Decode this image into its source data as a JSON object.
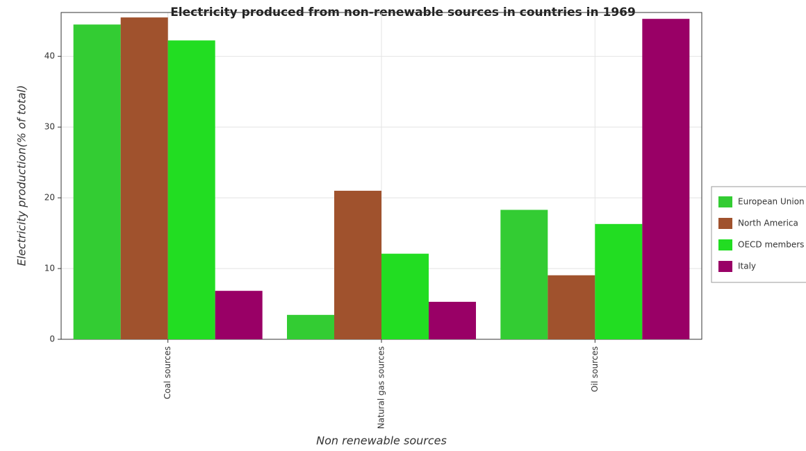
{
  "chart_data": {
    "type": "bar",
    "title": "Electricity produced from non-renewable sources in countries in 1969",
    "x_label": "Non renewable sources",
    "y_label": "Electricity production(% of total)",
    "categories": [
      "Coal sources",
      "Natural gas sources",
      "Oil sources"
    ],
    "series": [
      {
        "name": "European Union",
        "color": "#33cc33",
        "values": [
          44.5,
          3.45,
          18.3
        ]
      },
      {
        "name": "North America",
        "color": "#a0522d",
        "values": [
          45.5,
          21.0,
          9.05
        ]
      },
      {
        "name": "OECD members",
        "color": "#22dd22",
        "values": [
          42.25,
          12.1,
          16.3
        ]
      },
      {
        "name": "Italy",
        "color": "#990066",
        "values": [
          6.85,
          5.3,
          45.3
        ]
      }
    ],
    "ylim": [
      0,
      46.2
    ],
    "yticks": [
      0,
      10,
      20,
      30,
      40
    ],
    "grid": true,
    "legend": "right"
  }
}
